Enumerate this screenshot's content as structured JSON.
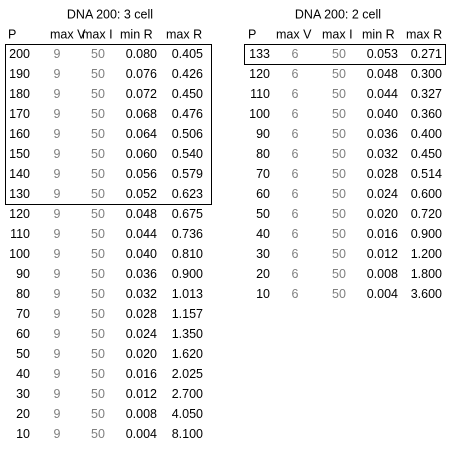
{
  "tables": [
    {
      "title": "DNA 200: 3 cell",
      "columns": [
        "P",
        "max V",
        "max I",
        "min R",
        "max R"
      ],
      "rows": [
        [
          "200",
          "9",
          "50",
          "0.080",
          "0.405"
        ],
        [
          "190",
          "9",
          "50",
          "0.076",
          "0.426"
        ],
        [
          "180",
          "9",
          "50",
          "0.072",
          "0.450"
        ],
        [
          "170",
          "9",
          "50",
          "0.068",
          "0.476"
        ],
        [
          "160",
          "9",
          "50",
          "0.064",
          "0.506"
        ],
        [
          "150",
          "9",
          "50",
          "0.060",
          "0.540"
        ],
        [
          "140",
          "9",
          "50",
          "0.056",
          "0.579"
        ],
        [
          "130",
          "9",
          "50",
          "0.052",
          "0.623"
        ],
        [
          "120",
          "9",
          "50",
          "0.048",
          "0.675"
        ],
        [
          "110",
          "9",
          "50",
          "0.044",
          "0.736"
        ],
        [
          "100",
          "9",
          "50",
          "0.040",
          "0.810"
        ],
        [
          "90",
          "9",
          "50",
          "0.036",
          "0.900"
        ],
        [
          "80",
          "9",
          "50",
          "0.032",
          "1.013"
        ],
        [
          "70",
          "9",
          "50",
          "0.028",
          "1.157"
        ],
        [
          "60",
          "9",
          "50",
          "0.024",
          "1.350"
        ],
        [
          "50",
          "9",
          "50",
          "0.020",
          "1.620"
        ],
        [
          "40",
          "9",
          "50",
          "0.016",
          "2.025"
        ],
        [
          "30",
          "9",
          "50",
          "0.012",
          "2.700"
        ],
        [
          "20",
          "9",
          "50",
          "0.008",
          "4.050"
        ],
        [
          "10",
          "9",
          "50",
          "0.004",
          "8.100"
        ]
      ]
    },
    {
      "title": "DNA 200: 2 cell",
      "columns": [
        "P",
        "max V",
        "max I",
        "min R",
        "max R"
      ],
      "rows": [
        [
          "133",
          "6",
          "50",
          "0.053",
          "0.271"
        ],
        [
          "120",
          "6",
          "50",
          "0.048",
          "0.300"
        ],
        [
          "110",
          "6",
          "50",
          "0.044",
          "0.327"
        ],
        [
          "100",
          "6",
          "50",
          "0.040",
          "0.360"
        ],
        [
          "90",
          "6",
          "50",
          "0.036",
          "0.400"
        ],
        [
          "80",
          "6",
          "50",
          "0.032",
          "0.450"
        ],
        [
          "70",
          "6",
          "50",
          "0.028",
          "0.514"
        ],
        [
          "60",
          "6",
          "50",
          "0.024",
          "0.600"
        ],
        [
          "50",
          "6",
          "50",
          "0.020",
          "0.720"
        ],
        [
          "40",
          "6",
          "50",
          "0.016",
          "0.900"
        ],
        [
          "30",
          "6",
          "50",
          "0.012",
          "1.200"
        ],
        [
          "20",
          "6",
          "50",
          "0.008",
          "1.800"
        ],
        [
          "10",
          "6",
          "50",
          "0.004",
          "3.600"
        ]
      ]
    }
  ]
}
